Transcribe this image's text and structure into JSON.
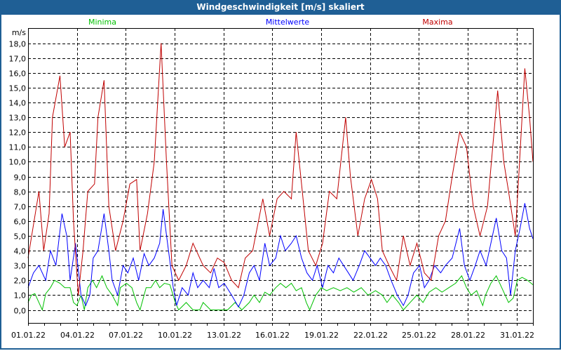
{
  "chart_data": {
    "type": "line",
    "title": "Windgeschwindigkeit [m/s] skaliert",
    "ylabel": "m/s",
    "xlabel": "",
    "xunit": "hours since 01.01.22 00:00",
    "xlim": [
      0,
      744
    ],
    "ylim": [
      -0.9,
      19
    ],
    "yticks": [
      0,
      1,
      2,
      3,
      4,
      5,
      6,
      7,
      8,
      9,
      10,
      11,
      12,
      13,
      14,
      15,
      16,
      17,
      18
    ],
    "ytick_labels": [
      "0,0",
      "1,0",
      "2,0",
      "3,0",
      "4,0",
      "5,0",
      "6,0",
      "7,0",
      "8,0",
      "9,0",
      "10,0",
      "11,0",
      "12,0",
      "13,0",
      "14,0",
      "15,0",
      "16,0",
      "17,0",
      "18,0"
    ],
    "xticks": [
      0,
      72,
      144,
      216,
      288,
      360,
      432,
      504,
      576,
      648,
      720
    ],
    "xtick_labels": [
      "01.01.22",
      "04.01.22",
      "07.01.22",
      "10.01.22",
      "13.01.22",
      "16.01.22",
      "19.01.22",
      "22.01.22",
      "25.01.22",
      "28.01.22",
      "31.01.22"
    ],
    "grid": true,
    "legend_placement": "top",
    "series": [
      {
        "name": "Minima",
        "color": "#00c000",
        "points": [
          [
            0,
            0.5
          ],
          [
            5,
            1
          ],
          [
            10,
            1.1
          ],
          [
            16,
            0.5
          ],
          [
            21,
            0
          ],
          [
            26,
            1.1
          ],
          [
            33,
            1.5
          ],
          [
            39,
            2
          ],
          [
            47,
            1.8
          ],
          [
            54,
            1.5
          ],
          [
            62,
            1.5
          ],
          [
            67,
            0.5
          ],
          [
            72,
            0.3
          ],
          [
            78,
            1
          ],
          [
            83,
            0
          ],
          [
            88,
            1.5
          ],
          [
            95,
            2
          ],
          [
            101,
            1.5
          ],
          [
            109,
            2.3
          ],
          [
            116,
            1.5
          ],
          [
            124,
            1
          ],
          [
            132,
            0.3
          ],
          [
            136,
            1.5
          ],
          [
            145,
            1.8
          ],
          [
            153,
            1.5
          ],
          [
            160,
            0.5
          ],
          [
            165,
            0
          ],
          [
            174,
            1.5
          ],
          [
            181,
            1.5
          ],
          [
            188,
            2
          ],
          [
            194,
            1.5
          ],
          [
            201,
            1.8
          ],
          [
            209,
            1.7
          ],
          [
            217,
            0.5
          ],
          [
            222,
            0
          ],
          [
            233,
            0.5
          ],
          [
            243,
            0
          ],
          [
            253,
            0
          ],
          [
            258,
            0.5
          ],
          [
            269,
            0
          ],
          [
            284,
            0
          ],
          [
            294,
            0
          ],
          [
            305,
            0.5
          ],
          [
            315,
            0
          ],
          [
            326,
            0.5
          ],
          [
            333,
            1
          ],
          [
            341,
            0.5
          ],
          [
            349,
            1.2
          ],
          [
            356,
            1
          ],
          [
            365,
            1.5
          ],
          [
            372,
            1.8
          ],
          [
            380,
            1.5
          ],
          [
            388,
            1.8
          ],
          [
            395,
            1.3
          ],
          [
            403,
            1.5
          ],
          [
            410,
            0.5
          ],
          [
            415,
            0
          ],
          [
            424,
            1
          ],
          [
            432,
            1.5
          ],
          [
            440,
            1.3
          ],
          [
            450,
            1.5
          ],
          [
            460,
            1.3
          ],
          [
            470,
            1.5
          ],
          [
            480,
            1.2
          ],
          [
            491,
            1.5
          ],
          [
            501,
            1
          ],
          [
            512,
            1.3
          ],
          [
            522,
            1
          ],
          [
            529,
            0.5
          ],
          [
            537,
            1
          ],
          [
            546,
            0.5
          ],
          [
            553,
            0
          ],
          [
            563,
            0.5
          ],
          [
            573,
            1
          ],
          [
            582,
            0.5
          ],
          [
            591,
            1.2
          ],
          [
            601,
            1.5
          ],
          [
            610,
            1.2
          ],
          [
            620,
            1.5
          ],
          [
            630,
            1.8
          ],
          [
            639,
            2.3
          ],
          [
            646,
            1.5
          ],
          [
            653,
            1
          ],
          [
            661,
            1.3
          ],
          [
            670,
            0.3
          ],
          [
            674,
            1
          ],
          [
            682,
            1.8
          ],
          [
            690,
            2.3
          ],
          [
            698,
            1.5
          ],
          [
            708,
            0.5
          ],
          [
            715,
            0.8
          ],
          [
            721,
            2
          ],
          [
            728,
            2.2
          ],
          [
            736,
            2
          ],
          [
            744,
            1.7
          ]
        ]
      },
      {
        "name": "Mittelwerte",
        "color": "#0000ff",
        "points": [
          [
            0,
            1.5
          ],
          [
            8,
            2.5
          ],
          [
            16,
            3
          ],
          [
            26,
            2
          ],
          [
            33,
            4
          ],
          [
            41,
            3
          ],
          [
            50,
            6.5
          ],
          [
            57,
            5
          ],
          [
            62,
            2
          ],
          [
            70,
            4.5
          ],
          [
            78,
            1
          ],
          [
            85,
            0.3
          ],
          [
            91,
            1
          ],
          [
            96,
            3.5
          ],
          [
            103,
            4
          ],
          [
            112,
            6.5
          ],
          [
            119,
            4
          ],
          [
            124,
            2
          ],
          [
            132,
            1
          ],
          [
            140,
            3
          ],
          [
            147,
            2.5
          ],
          [
            155,
            3.5
          ],
          [
            163,
            2
          ],
          [
            171,
            3.8
          ],
          [
            178,
            3
          ],
          [
            186,
            3.5
          ],
          [
            194,
            4.5
          ],
          [
            199,
            6.8
          ],
          [
            207,
            4
          ],
          [
            214,
            1.5
          ],
          [
            219,
            0.3
          ],
          [
            227,
            1.5
          ],
          [
            236,
            1
          ],
          [
            243,
            2.5
          ],
          [
            250,
            1.5
          ],
          [
            258,
            2
          ],
          [
            267,
            1.5
          ],
          [
            274,
            2.8
          ],
          [
            281,
            1.5
          ],
          [
            289,
            1.8
          ],
          [
            300,
            1
          ],
          [
            310,
            0.2
          ],
          [
            318,
            1
          ],
          [
            326,
            2.5
          ],
          [
            333,
            3
          ],
          [
            341,
            2
          ],
          [
            349,
            4.5
          ],
          [
            356,
            3
          ],
          [
            365,
            3.5
          ],
          [
            372,
            5
          ],
          [
            379,
            4
          ],
          [
            388,
            4.5
          ],
          [
            395,
            5
          ],
          [
            403,
            3.5
          ],
          [
            411,
            2.5
          ],
          [
            419,
            2
          ],
          [
            426,
            3
          ],
          [
            434,
            1.5
          ],
          [
            442,
            3
          ],
          [
            450,
            2.5
          ],
          [
            458,
            3.5
          ],
          [
            465,
            3
          ],
          [
            472,
            2.5
          ],
          [
            479,
            2
          ],
          [
            488,
            3
          ],
          [
            496,
            4
          ],
          [
            504,
            3.5
          ],
          [
            512,
            3
          ],
          [
            519,
            3.5
          ],
          [
            527,
            3
          ],
          [
            535,
            2
          ],
          [
            544,
            1
          ],
          [
            553,
            0.3
          ],
          [
            560,
            1
          ],
          [
            568,
            2.5
          ],
          [
            577,
            3
          ],
          [
            584,
            1.5
          ],
          [
            591,
            2
          ],
          [
            599,
            3
          ],
          [
            608,
            2.5
          ],
          [
            615,
            3
          ],
          [
            625,
            3.5
          ],
          [
            636,
            5.5
          ],
          [
            643,
            3
          ],
          [
            651,
            2
          ],
          [
            659,
            3
          ],
          [
            666,
            4
          ],
          [
            675,
            3
          ],
          [
            682,
            4.5
          ],
          [
            690,
            6.2
          ],
          [
            698,
            4
          ],
          [
            705,
            3.5
          ],
          [
            711,
            1
          ],
          [
            718,
            4
          ],
          [
            725,
            5.5
          ],
          [
            732,
            7.2
          ],
          [
            739,
            5.5
          ],
          [
            744,
            4.8
          ]
        ]
      },
      {
        "name": "Maxima",
        "color": "#c00000",
        "points": [
          [
            0,
            3.5
          ],
          [
            16,
            8
          ],
          [
            23,
            4
          ],
          [
            31,
            6.5
          ],
          [
            36,
            13
          ],
          [
            47,
            15.8
          ],
          [
            54,
            11
          ],
          [
            62,
            12
          ],
          [
            67,
            6
          ],
          [
            74,
            1
          ],
          [
            81,
            4
          ],
          [
            88,
            8
          ],
          [
            98,
            8.5
          ],
          [
            103,
            13
          ],
          [
            112,
            15.5
          ],
          [
            119,
            7
          ],
          [
            129,
            4
          ],
          [
            140,
            6
          ],
          [
            150,
            8.5
          ],
          [
            160,
            8.8
          ],
          [
            165,
            4
          ],
          [
            176,
            6.5
          ],
          [
            186,
            10
          ],
          [
            196,
            18
          ],
          [
            204,
            10
          ],
          [
            212,
            3
          ],
          [
            222,
            2
          ],
          [
            233,
            3
          ],
          [
            243,
            4.5
          ],
          [
            258,
            3
          ],
          [
            269,
            2.5
          ],
          [
            279,
            3.5
          ],
          [
            289,
            3.2
          ],
          [
            300,
            2
          ],
          [
            310,
            1.5
          ],
          [
            320,
            3.5
          ],
          [
            331,
            4
          ],
          [
            346,
            7.5
          ],
          [
            356,
            5
          ],
          [
            367,
            7.5
          ],
          [
            377,
            8
          ],
          [
            388,
            7.5
          ],
          [
            395,
            12
          ],
          [
            403,
            8.5
          ],
          [
            413,
            4
          ],
          [
            424,
            3
          ],
          [
            434,
            4.5
          ],
          [
            444,
            8
          ],
          [
            455,
            7.5
          ],
          [
            468,
            13
          ],
          [
            475,
            9
          ],
          [
            486,
            5
          ],
          [
            496,
            7.5
          ],
          [
            506,
            8.8
          ],
          [
            515,
            7.5
          ],
          [
            522,
            4
          ],
          [
            532,
            3
          ],
          [
            543,
            2
          ],
          [
            553,
            5
          ],
          [
            563,
            3
          ],
          [
            573,
            4.5
          ],
          [
            584,
            2.5
          ],
          [
            594,
            2
          ],
          [
            605,
            5
          ],
          [
            615,
            6
          ],
          [
            625,
            9
          ],
          [
            636,
            12
          ],
          [
            646,
            11
          ],
          [
            656,
            7
          ],
          [
            666,
            5
          ],
          [
            677,
            7
          ],
          [
            692,
            14.8
          ],
          [
            701,
            10
          ],
          [
            708,
            8
          ],
          [
            718,
            5
          ],
          [
            723,
            9
          ],
          [
            732,
            16.3
          ],
          [
            739,
            13
          ],
          [
            744,
            10
          ]
        ]
      }
    ]
  }
}
